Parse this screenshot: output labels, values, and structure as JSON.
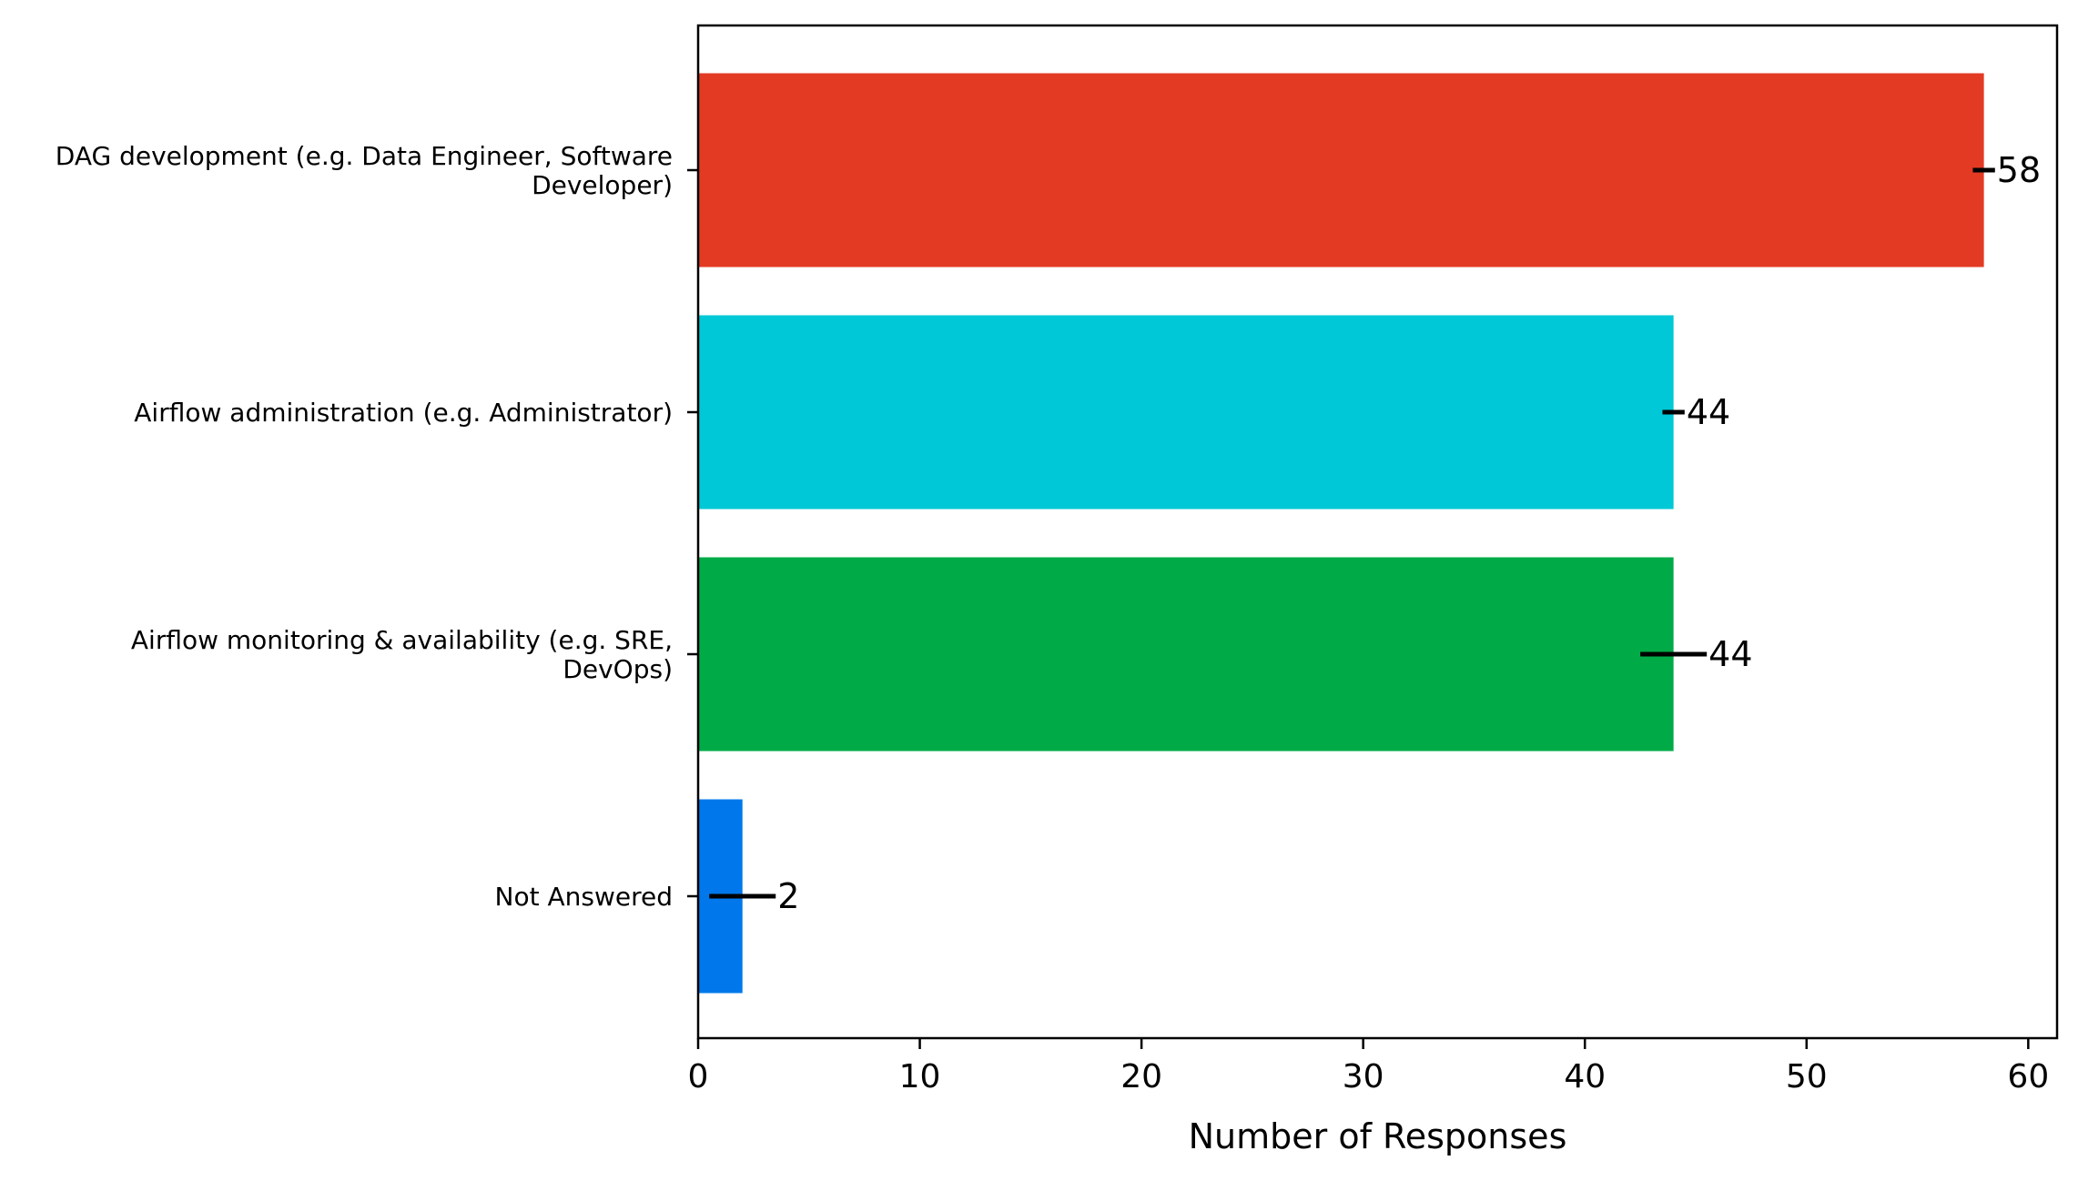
{
  "chart_data": {
    "type": "bar",
    "orientation": "horizontal",
    "categories": [
      "DAG development (e.g. Data Engineer, Software\nDeveloper)",
      "Airflow administration (e.g. Administrator)",
      "Airflow monitoring & availability (e.g. SRE,\nDevOps)",
      "Not Answered"
    ],
    "values": [
      58,
      44,
      44,
      2
    ],
    "error_bars": [
      0.5,
      0.5,
      1.5,
      1.5
    ],
    "bar_colors": [
      "#e33a23",
      "#00c8d6",
      "#00ab47",
      "#0078eb"
    ],
    "data_labels": [
      "58",
      "44",
      "44",
      "2"
    ],
    "xlabel": "Number of Responses",
    "ylabel": "",
    "title": "",
    "xlim": [
      0,
      61.3
    ],
    "xticks": [
      0,
      10,
      20,
      30,
      40,
      50,
      60
    ],
    "grid": false,
    "legend": false
  }
}
